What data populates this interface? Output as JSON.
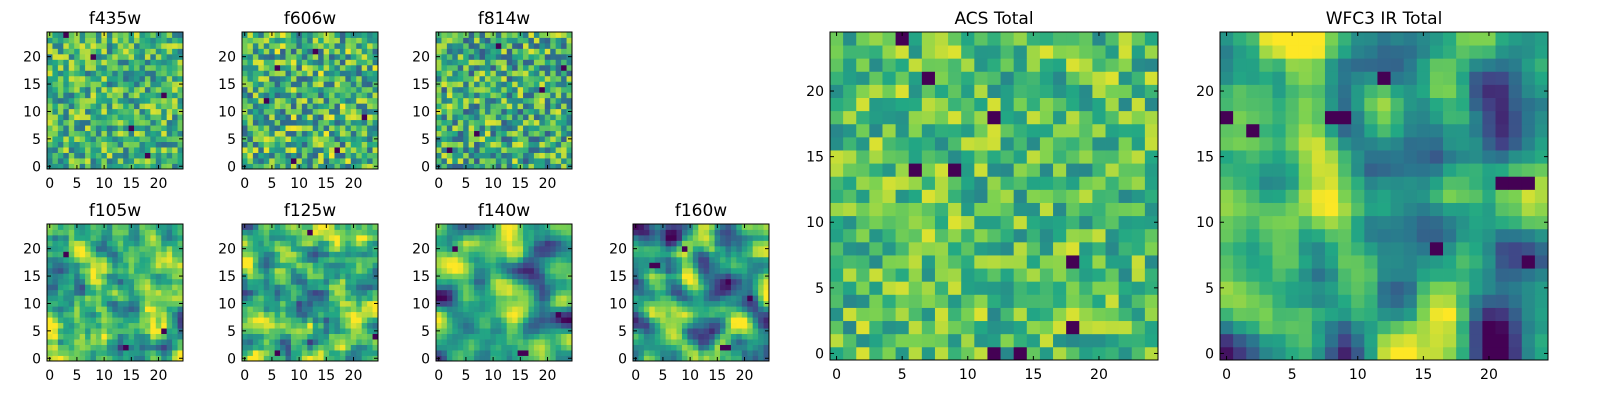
{
  "colormap": {
    "name": "viridis",
    "stops": [
      "#440154",
      "#414487",
      "#2a788e",
      "#22a884",
      "#7ad151",
      "#fde725"
    ]
  },
  "chart_data": [
    {
      "type": "heatmap",
      "title": "f435w",
      "grid_size": 25,
      "xticks": [
        0,
        5,
        10,
        15,
        20
      ],
      "yticks": [
        0,
        5,
        10,
        15,
        20
      ],
      "value_range": [
        0,
        1
      ],
      "pattern": "noise",
      "seed": 11,
      "mean": 0.66,
      "spread": 0.17,
      "smooth": 0,
      "dark_cells": [
        [
          18,
          2
        ],
        [
          21,
          13
        ],
        [
          3,
          24
        ],
        [
          8,
          20
        ],
        [
          15,
          7
        ]
      ]
    },
    {
      "type": "heatmap",
      "title": "f606w",
      "grid_size": 25,
      "xticks": [
        0,
        5,
        10,
        15,
        20
      ],
      "yticks": [
        0,
        5,
        10,
        15,
        20
      ],
      "value_range": [
        0,
        1
      ],
      "pattern": "noise",
      "seed": 23,
      "mean": 0.64,
      "spread": 0.2,
      "smooth": 0,
      "dark_cells": [
        [
          9,
          1
        ],
        [
          17,
          3
        ],
        [
          4,
          12
        ],
        [
          22,
          9
        ],
        [
          13,
          21
        ],
        [
          6,
          18
        ]
      ]
    },
    {
      "type": "heatmap",
      "title": "f814w",
      "grid_size": 25,
      "xticks": [
        0,
        5,
        10,
        15,
        20
      ],
      "yticks": [
        0,
        5,
        10,
        15,
        20
      ],
      "value_range": [
        0,
        1
      ],
      "pattern": "noise",
      "seed": 37,
      "mean": 0.62,
      "spread": 0.2,
      "smooth": 0,
      "dark_cells": [
        [
          7,
          6
        ],
        [
          19,
          14
        ],
        [
          11,
          22
        ],
        [
          2,
          3
        ],
        [
          23,
          18
        ]
      ]
    },
    {
      "type": "heatmap",
      "title": "f105w",
      "grid_size": 25,
      "xticks": [
        0,
        5,
        10,
        15,
        20
      ],
      "yticks": [
        0,
        5,
        10,
        15,
        20
      ],
      "value_range": [
        0,
        1
      ],
      "pattern": "smooth",
      "seed": 51,
      "mean": 0.66,
      "spread": 0.17,
      "smooth": 1,
      "dark_cells": [
        [
          14,
          2
        ],
        [
          21,
          5
        ],
        [
          3,
          19
        ]
      ]
    },
    {
      "type": "heatmap",
      "title": "f125w",
      "grid_size": 25,
      "xticks": [
        0,
        5,
        10,
        15,
        20
      ],
      "yticks": [
        0,
        5,
        10,
        15,
        20
      ],
      "value_range": [
        0,
        1
      ],
      "pattern": "smooth",
      "seed": 63,
      "mean": 0.65,
      "spread": 0.18,
      "smooth": 1,
      "dark_cells": [
        [
          24,
          4
        ],
        [
          12,
          23
        ],
        [
          6,
          1
        ]
      ]
    },
    {
      "type": "heatmap",
      "title": "f140w",
      "grid_size": 25,
      "xticks": [
        0,
        5,
        10,
        15,
        20
      ],
      "yticks": [
        0,
        5,
        10,
        15,
        20
      ],
      "value_range": [
        0,
        1
      ],
      "pattern": "smooth",
      "seed": 77,
      "mean": 0.6,
      "spread": 0.2,
      "smooth": 2,
      "dark_cells": [
        [
          15,
          1
        ],
        [
          16,
          1
        ],
        [
          3,
          20
        ],
        [
          22,
          8
        ]
      ]
    },
    {
      "type": "heatmap",
      "title": "f160w",
      "grid_size": 25,
      "xticks": [
        0,
        5,
        10,
        15,
        20
      ],
      "yticks": [
        0,
        5,
        10,
        15,
        20
      ],
      "value_range": [
        0,
        1
      ],
      "pattern": "smooth",
      "seed": 89,
      "mean": 0.55,
      "spread": 0.22,
      "smooth": 2,
      "dark_cells": [
        [
          16,
          2
        ],
        [
          17,
          2
        ],
        [
          3,
          17
        ],
        [
          4,
          17
        ],
        [
          21,
          11
        ],
        [
          9,
          20
        ]
      ]
    },
    {
      "type": "heatmap",
      "title": "ACS Total",
      "grid_size": 25,
      "xticks": [
        0,
        5,
        10,
        15,
        20
      ],
      "yticks": [
        0,
        5,
        10,
        15,
        20
      ],
      "value_range": [
        0,
        1
      ],
      "pattern": "noise",
      "seed": 101,
      "mean": 0.7,
      "spread": 0.14,
      "smooth": 0,
      "dark_cells": [
        [
          7,
          21
        ],
        [
          12,
          18
        ],
        [
          6,
          14
        ],
        [
          18,
          7
        ],
        [
          18,
          2
        ],
        [
          12,
          0
        ],
        [
          14,
          0
        ],
        [
          9,
          14
        ],
        [
          5,
          24
        ]
      ]
    },
    {
      "type": "heatmap",
      "title": "WFC3 IR Total",
      "grid_size": 25,
      "xticks": [
        0,
        5,
        10,
        15,
        20
      ],
      "yticks": [
        0,
        5,
        10,
        15,
        20
      ],
      "value_range": [
        0,
        1
      ],
      "pattern": "smooth",
      "seed": 131,
      "mean": 0.58,
      "spread": 0.2,
      "smooth": 2,
      "dark_cells": [
        [
          0,
          18
        ],
        [
          8,
          18
        ],
        [
          9,
          18
        ],
        [
          21,
          13
        ],
        [
          22,
          13
        ],
        [
          23,
          13
        ],
        [
          16,
          8
        ],
        [
          23,
          7
        ],
        [
          12,
          21
        ],
        [
          2,
          17
        ]
      ]
    }
  ]
}
